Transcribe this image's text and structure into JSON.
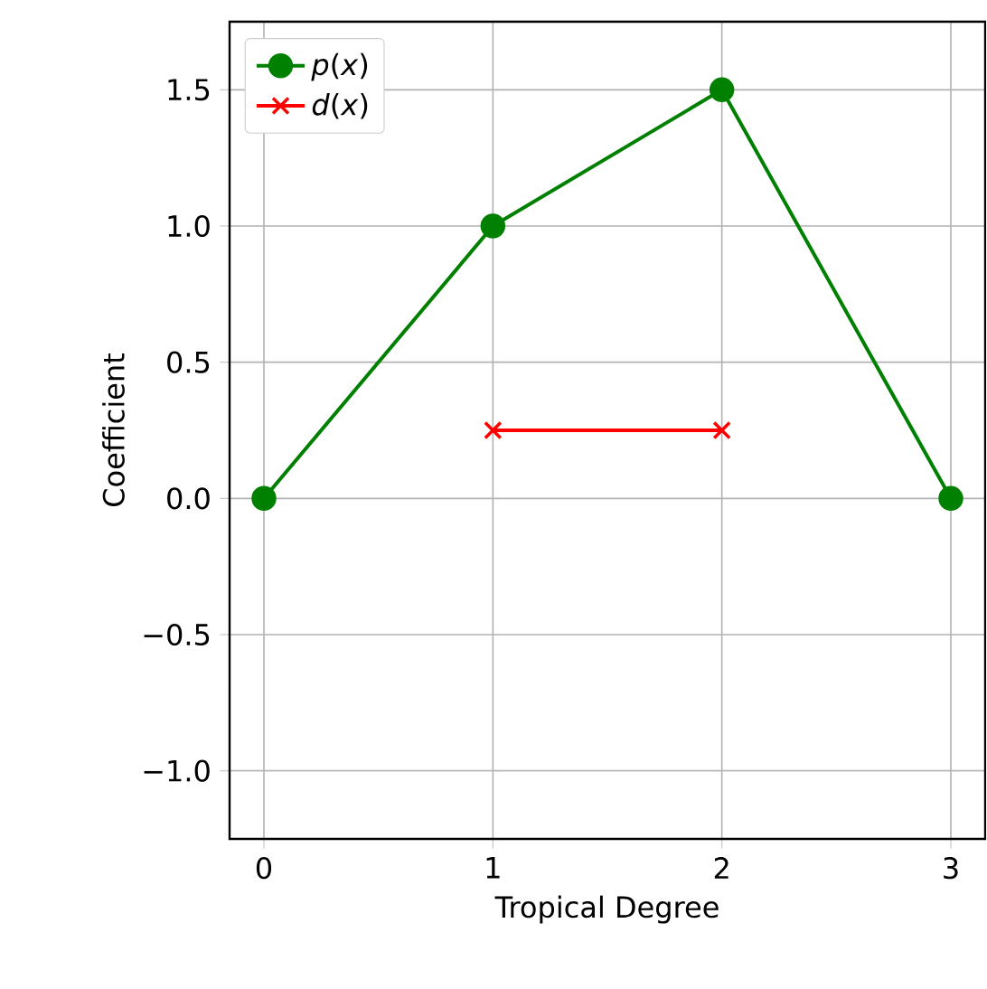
{
  "chart_data": {
    "type": "line",
    "xlabel": "Tropical Degree",
    "ylabel": "Coefficient",
    "xlim": [
      -0.15,
      3.15
    ],
    "ylim": [
      -1.25,
      1.75
    ],
    "xticks": [
      0,
      1,
      2,
      3
    ],
    "yticks": [
      {
        "value": -1.0,
        "label": "−1.0"
      },
      {
        "value": -0.5,
        "label": "−0.5"
      },
      {
        "value": 0,
        "label": "0.0"
      },
      {
        "value": 0.5,
        "label": "0.5"
      },
      {
        "value": 1.0,
        "label": "1.0"
      },
      {
        "value": 1.5,
        "label": "1.5"
      }
    ],
    "grid": true,
    "legend": "top left",
    "line_style": "solid",
    "series": [
      {
        "name": "*p*(*x*)",
        "color": "#008000",
        "marker": "circle",
        "x": [
          0,
          1,
          2,
          3
        ],
        "values": [
          0,
          1.0,
          1.5,
          0
        ]
      },
      {
        "name": "*d*(*x*)",
        "color": "#ff0000",
        "marker": "cross",
        "x": [
          1,
          2
        ],
        "values": [
          0.25,
          0.25
        ]
      }
    ]
  }
}
